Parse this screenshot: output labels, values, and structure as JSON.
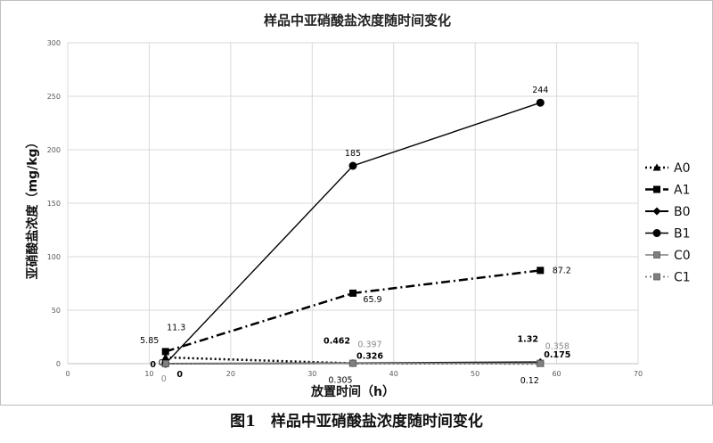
{
  "figure_caption": "图1　样品中亚硝酸盐浓度随时间变化",
  "chart_data": {
    "type": "line",
    "title": "样品中亚硝酸盐浓度随时间变化",
    "xlabel": "放置时间（h）",
    "ylabel": "亚硝酸盐浓度（mg/kg）",
    "xlim": [
      0,
      70
    ],
    "ylim": [
      0,
      300
    ],
    "xticks": [
      "0",
      "10",
      "20",
      "30",
      "40",
      "50",
      "60",
      "70"
    ],
    "yticks": [
      "0",
      "50",
      "100",
      "150",
      "200",
      "250",
      "300"
    ],
    "grid": "on",
    "legend_position": "right",
    "series": [
      {
        "name": "A0",
        "x": [
          12,
          35,
          58
        ],
        "y": [
          5.85,
          0.305,
          0.12
        ],
        "labels": [
          "5.85",
          "0.305",
          "0.12"
        ],
        "line": "dotted",
        "marker": "triangle",
        "color": "#000000"
      },
      {
        "name": "A1",
        "x": [
          12,
          35,
          58
        ],
        "y": [
          11.3,
          65.9,
          87.2
        ],
        "labels": [
          "11.3",
          "65.9",
          "87.2"
        ],
        "line": "dashdot",
        "marker": "square",
        "color": "#000000"
      },
      {
        "name": "B0",
        "x": [
          12,
          35,
          58
        ],
        "y": [
          0,
          0.462,
          1.32
        ],
        "labels": [
          "0",
          "0.462",
          "1.32"
        ],
        "line": "solid",
        "marker": "diamond",
        "color": "#000000"
      },
      {
        "name": "B1",
        "x": [
          12,
          35,
          58
        ],
        "y": [
          0,
          185,
          244
        ],
        "labels": [
          "0",
          "185",
          "244"
        ],
        "line": "solid",
        "marker": "circle",
        "color": "#000000"
      },
      {
        "name": "C0",
        "x": [
          12,
          35,
          58
        ],
        "y": [
          0,
          0.397,
          0.358
        ],
        "labels": [
          "0",
          "0.397",
          "0.358"
        ],
        "line": "solid",
        "marker": "square-gray",
        "color": "#808080"
      },
      {
        "name": "C1",
        "x": [
          12,
          35,
          58
        ],
        "y": [
          0,
          0.326,
          0.175
        ],
        "labels": [
          "0",
          "0.326",
          "0.175"
        ],
        "line": "dotted",
        "marker": "square-gray",
        "color": "#808080"
      }
    ]
  }
}
